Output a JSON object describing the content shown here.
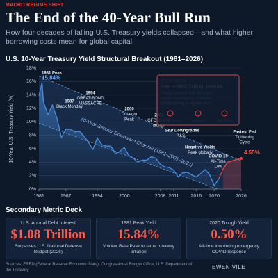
{
  "header": {
    "kicker": "MACRO REGIME SHIFT",
    "title": "The End of the 40-Year Bull Run",
    "subtitle": "How four decades of falling U.S. Treasury yields collapsed—and what higher borrowing costs mean for global capital."
  },
  "chart_data": {
    "type": "line",
    "title": "U.S. 10-Year Treasury Yield Structural Breakout (1981–2026)",
    "y_label": "10-Year U.S. Treasury Yield (%)",
    "x": [
      1981,
      1981.7,
      1982,
      1983,
      1984,
      1985,
      1986,
      1987,
      1988,
      1989,
      1990,
      1991,
      1992,
      1993,
      1994,
      1995,
      1996,
      1997,
      1998,
      1999,
      2000,
      2001,
      2002,
      2003,
      2004,
      2005,
      2006,
      2007,
      2008,
      2009,
      2010,
      2011,
      2012,
      2013,
      2014,
      2015,
      2016,
      2017,
      2018,
      2019,
      2020,
      2021
    ],
    "values": [
      13.9,
      15.84,
      13.0,
      11.1,
      12.5,
      10.6,
      7.7,
      8.9,
      8.9,
      8.5,
      8.6,
      7.9,
      7.0,
      5.9,
      7.6,
      6.6,
      6.4,
      6.4,
      5.3,
      5.6,
      6.2,
      5.0,
      4.6,
      4.0,
      4.3,
      4.3,
      4.8,
      4.6,
      3.7,
      3.3,
      3.2,
      2.8,
      1.8,
      2.4,
      2.5,
      2.1,
      1.8,
      2.3,
      2.9,
      2.1,
      0.5,
      1.5
    ],
    "color": "#4a90e2",
    "break_x": [
      2022,
      2023,
      2024,
      2025,
      2026
    ],
    "break_values": [
      3.0,
      4.0,
      4.2,
      4.4,
      4.55
    ],
    "break_color": "#e8423a",
    "end_label": "4.55%",
    "xlim": [
      1981,
      2026
    ],
    "ylim": [
      0,
      18
    ],
    "xticks": [
      1981,
      1987,
      1994,
      2000,
      2008,
      2011,
      2016,
      2020,
      2026
    ],
    "yticks": [
      {
        "value": 0,
        "label": "0%"
      },
      {
        "value": 2,
        "label": "2%"
      },
      {
        "value": 4,
        "label": "4%"
      },
      {
        "value": 6,
        "label": "6%"
      },
      {
        "value": 8,
        "label": "8%"
      },
      {
        "value": 10,
        "label": "10%"
      },
      {
        "value": 12,
        "label": "12%"
      },
      {
        "value": 14,
        "label": "14%"
      },
      {
        "value": 16,
        "label": "16%"
      },
      {
        "value": 18,
        "label": "18%"
      }
    ],
    "grid": true,
    "channel": {
      "label": "40-Year Secular Downward Channel (1981–2001–2021)",
      "upper": {
        "x": [
          1981,
          2026
        ],
        "values": [
          16.8,
          4.2
        ]
      },
      "lower": {
        "x": [
          1981,
          2026
        ],
        "values": [
          9.8,
          -1.3
        ]
      }
    },
    "annotations": [
      {
        "lines": [
          "1981 Peak",
          "15.84%"
        ]
      },
      {
        "lines": [
          "1987",
          "Black Monday"
        ]
      },
      {
        "lines": [
          "1994",
          "GREAT BOND",
          "MASSACRE"
        ]
      },
      {
        "lines": [
          "2000",
          "Dot-com",
          "Peak"
        ]
      },
      {
        "lines": [
          "2008",
          "GFC & ZIRP",
          "launch"
        ]
      },
      {
        "lines": [
          "S&P Downgrades",
          "U.S."
        ]
      },
      {
        "lines": [
          "Negative Yields",
          "Peak globally"
        ]
      },
      {
        "lines": [
          "COVID-19",
          "All-Time",
          "Low"
        ]
      },
      {
        "lines": [
          "Fastest Fed",
          "Tightening",
          "Cycle"
        ]
      }
    ],
    "callout": {
      "period": "2022–2026",
      "title": "THE STRUCTURAL BREAK",
      "lines": [
        "Yields breach the 40-year",
        "upper resistance channel,",
        "establishing a higher floor."
      ],
      "icons": [
        "Central Banks",
        "Inflation",
        "High Rates"
      ]
    }
  },
  "metrics": {
    "title": "Secondary Metric Deck",
    "cards": [
      {
        "label": "U.S. Annual Debt Interest",
        "value": "$1.08 Trillion",
        "note": "Surpasses U.S. National Defense Budget (2026)"
      },
      {
        "label": "1981 Peak Yield",
        "value": "15.84%",
        "note": "Volcker Rate Peak to tame runaway inflation"
      },
      {
        "label": "2020 Trough Yield",
        "value": "0.50%",
        "note": "All-time low during emergency COVID response"
      }
    ]
  },
  "footer": {
    "sources": "Sources: FRED (Federal Reserve Economic Data), Congressional Budget Office, U.S. Department of the Treasury",
    "brand": "EWEN VILE"
  }
}
